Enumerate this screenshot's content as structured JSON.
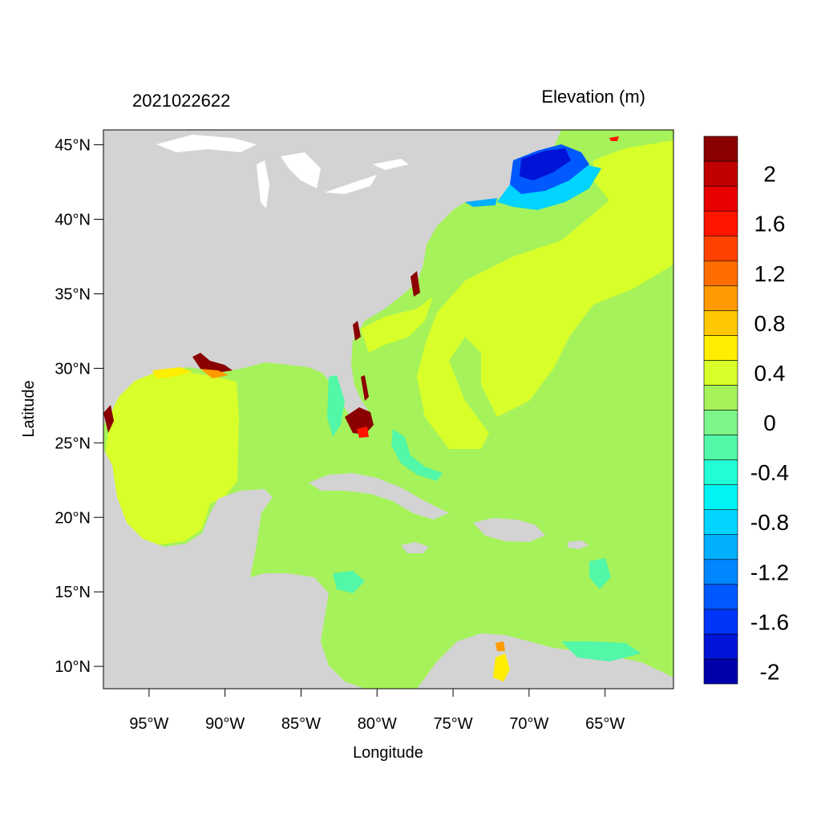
{
  "header": {
    "timestamp": "2021022622",
    "variable_label": "Elevation (m)"
  },
  "axes": {
    "xlabel": "Longitude",
    "ylabel": "Latitude",
    "lon_range": [
      -98,
      -60.5
    ],
    "lat_range": [
      8.5,
      46
    ],
    "x_ticks": [
      {
        "lon": -95,
        "label": "95°W"
      },
      {
        "lon": -90,
        "label": "90°W"
      },
      {
        "lon": -85,
        "label": "85°W"
      },
      {
        "lon": -80,
        "label": "80°W"
      },
      {
        "lon": -75,
        "label": "75°W"
      },
      {
        "lon": -70,
        "label": "70°W"
      },
      {
        "lon": -65,
        "label": "65°W"
      }
    ],
    "y_ticks": [
      {
        "lat": 10,
        "label": "10°N"
      },
      {
        "lat": 15,
        "label": "15°N"
      },
      {
        "lat": 20,
        "label": "20°N"
      },
      {
        "lat": 25,
        "label": "25°N"
      },
      {
        "lat": 30,
        "label": "30°N"
      },
      {
        "lat": 35,
        "label": "35°N"
      },
      {
        "lat": 40,
        "label": "40°N"
      },
      {
        "lat": 45,
        "label": "45°N"
      }
    ]
  },
  "colors": {
    "land": "#d3d3d3",
    "ocean_base": "#a6f25a",
    "lakes": "#ffffff"
  },
  "colorbar": {
    "levels": [
      {
        "color": "#0000aa",
        "label": "-2"
      },
      {
        "color": "#0014d8",
        "label": ""
      },
      {
        "color": "#0034f8",
        "label": "-1.6"
      },
      {
        "color": "#0058ff",
        "label": ""
      },
      {
        "color": "#0086ff",
        "label": "-1.2"
      },
      {
        "color": "#00b0ff",
        "label": ""
      },
      {
        "color": "#00d4ff",
        "label": "-0.8"
      },
      {
        "color": "#00f4f4",
        "label": ""
      },
      {
        "color": "#22ffd6",
        "label": "-0.4"
      },
      {
        "color": "#52f7a8",
        "label": ""
      },
      {
        "color": "#7cf58a",
        "label": "0"
      },
      {
        "color": "#a6f25a",
        "label": ""
      },
      {
        "color": "#d8ff2a",
        "label": "0.4"
      },
      {
        "color": "#ffee00",
        "label": ""
      },
      {
        "color": "#ffc800",
        "label": "0.8"
      },
      {
        "color": "#ff9a00",
        "label": ""
      },
      {
        "color": "#ff6c00",
        "label": "1.2"
      },
      {
        "color": "#ff4200",
        "label": ""
      },
      {
        "color": "#ff1400",
        "label": "1.6"
      },
      {
        "color": "#e80000",
        "label": ""
      },
      {
        "color": "#c00000",
        "label": "2"
      },
      {
        "color": "#8b0000",
        "label": ""
      }
    ]
  }
}
